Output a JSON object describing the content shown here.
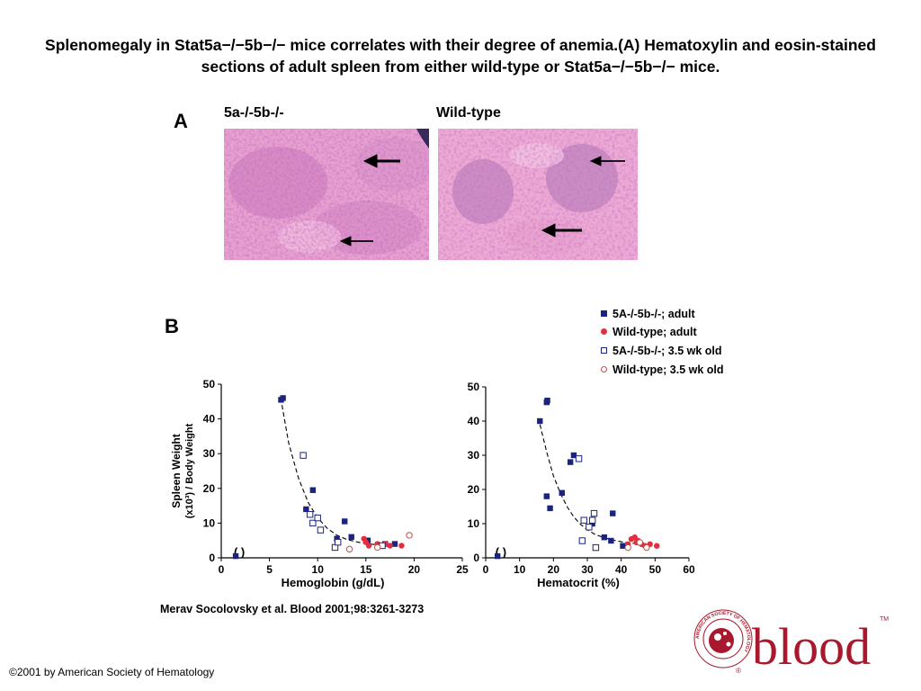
{
  "slide": {
    "title": "Splenomegaly in Stat5a−/−5b−/− mice correlates with their degree of anemia.(A) Hematoxylin and eosin-stained sections of adult spleen from either wild-type or Stat5a−/−5b−/− mice.",
    "citation": "Merav Socolovsky et al. Blood 2001;98:3261-3273",
    "copyright": "©2001 by American Society of Hematology"
  },
  "panel_a": {
    "letter": "A",
    "left_label": "5a-/-5b-/-",
    "right_label": "Wild-type"
  },
  "panel_b": {
    "letter": "B"
  },
  "logo": {
    "wordmark": "blood",
    "ring_text": "AMERICAN SOCIETY OF HEMATOLOGY",
    "trademark": "TM",
    "registered": "®"
  },
  "colors": {
    "mutant": "#1a237e",
    "wildtype": "#e03040",
    "wildtype_young": "#c0504d",
    "histology_bg": "#e8a2cf",
    "logo_red": "#a8192e"
  },
  "chart_data": [
    {
      "type": "scatter",
      "title": "",
      "xlabel": "Hemoglobin (g/dL)",
      "ylabel": "Spleen Weight (x10³) / Body Weight",
      "xlim": [
        0,
        25
      ],
      "ylim": [
        0,
        50
      ],
      "xticks": [
        0,
        5,
        10,
        15,
        20,
        25
      ],
      "yticks": [
        0,
        10,
        20,
        30,
        40,
        50
      ],
      "axis_break_label": "( )",
      "legend": "top-right",
      "series": [
        {
          "name": "5A-/-5b-/-; adult",
          "marker": "filled-square",
          "color": "#1a237e",
          "x": [
            6.2,
            6.4,
            8.8,
            9.5,
            12.0,
            12.8,
            13.5,
            15.2,
            17.0,
            18.0,
            1.5
          ],
          "y": [
            45.5,
            46.0,
            14.0,
            19.5,
            5.5,
            10.5,
            6.0,
            5.0,
            4.0,
            4.0,
            0.5
          ]
        },
        {
          "name": "Wild-type; adult",
          "marker": "filled-circle",
          "color": "#e03040",
          "x": [
            14.8,
            15.0,
            15.3,
            16.2,
            16.6,
            17.0,
            17.5,
            18.7
          ],
          "y": [
            5.5,
            4.5,
            3.5,
            4.0,
            3.5,
            4.0,
            3.5,
            3.5
          ]
        },
        {
          "name": "5A-/-5b-/-; 3.5 wk old",
          "marker": "open-square",
          "color": "#1a237e",
          "x": [
            8.5,
            9.2,
            9.5,
            10.0,
            10.3,
            11.8,
            12.1,
            16.7
          ],
          "y": [
            29.5,
            12.5,
            10.0,
            11.5,
            8.0,
            3.0,
            4.5,
            3.5
          ]
        },
        {
          "name": "Wild-type; 3.5 wk old",
          "marker": "open-circle",
          "color": "#c0504d",
          "x": [
            13.3,
            16.2,
            19.5
          ],
          "y": [
            2.5,
            3.0,
            6.5
          ]
        }
      ]
    },
    {
      "type": "scatter",
      "title": "",
      "xlabel": "Hematocrit (%)",
      "ylabel": "",
      "xlim": [
        0,
        60
      ],
      "ylim": [
        0,
        50
      ],
      "xticks": [
        0,
        10,
        20,
        30,
        40,
        50,
        60
      ],
      "yticks": [
        0,
        10,
        20,
        30,
        40,
        50
      ],
      "axis_break_label": "( )",
      "series": [
        {
          "name": "5A-/-5b-/-; adult",
          "marker": "filled-square",
          "color": "#1a237e",
          "x": [
            16.0,
            18.0,
            18.2,
            18.0,
            19.0,
            22.5,
            25.0,
            26.0,
            31.5,
            35.0,
            37.0,
            37.5,
            40.5,
            3.5
          ],
          "y": [
            40.0,
            45.5,
            46.0,
            18.0,
            14.5,
            19.0,
            28.0,
            30.0,
            10.0,
            6.0,
            5.0,
            13.0,
            3.5,
            0.5
          ]
        },
        {
          "name": "Wild-type; adult",
          "marker": "filled-circle",
          "color": "#e03040",
          "x": [
            42.0,
            43.0,
            44.0,
            44.5,
            45.0,
            46.0,
            47.0,
            48.5,
            50.5
          ],
          "y": [
            4.0,
            5.5,
            6.0,
            4.5,
            5.0,
            4.0,
            3.5,
            4.0,
            3.5
          ]
        },
        {
          "name": "5A-/-5b-/-; 3.5 wk old",
          "marker": "open-square",
          "color": "#1a237e",
          "x": [
            27.5,
            28.5,
            29.0,
            30.5,
            31.5,
            32.0,
            32.5
          ],
          "y": [
            29.0,
            5.0,
            11.0,
            9.0,
            11.0,
            13.0,
            3.0
          ]
        },
        {
          "name": "Wild-type; 3.5 wk old",
          "marker": "open-circle",
          "color": "#c0504d",
          "x": [
            42.0,
            45.5,
            47.5
          ],
          "y": [
            3.0,
            4.5,
            3.0
          ]
        }
      ]
    }
  ]
}
